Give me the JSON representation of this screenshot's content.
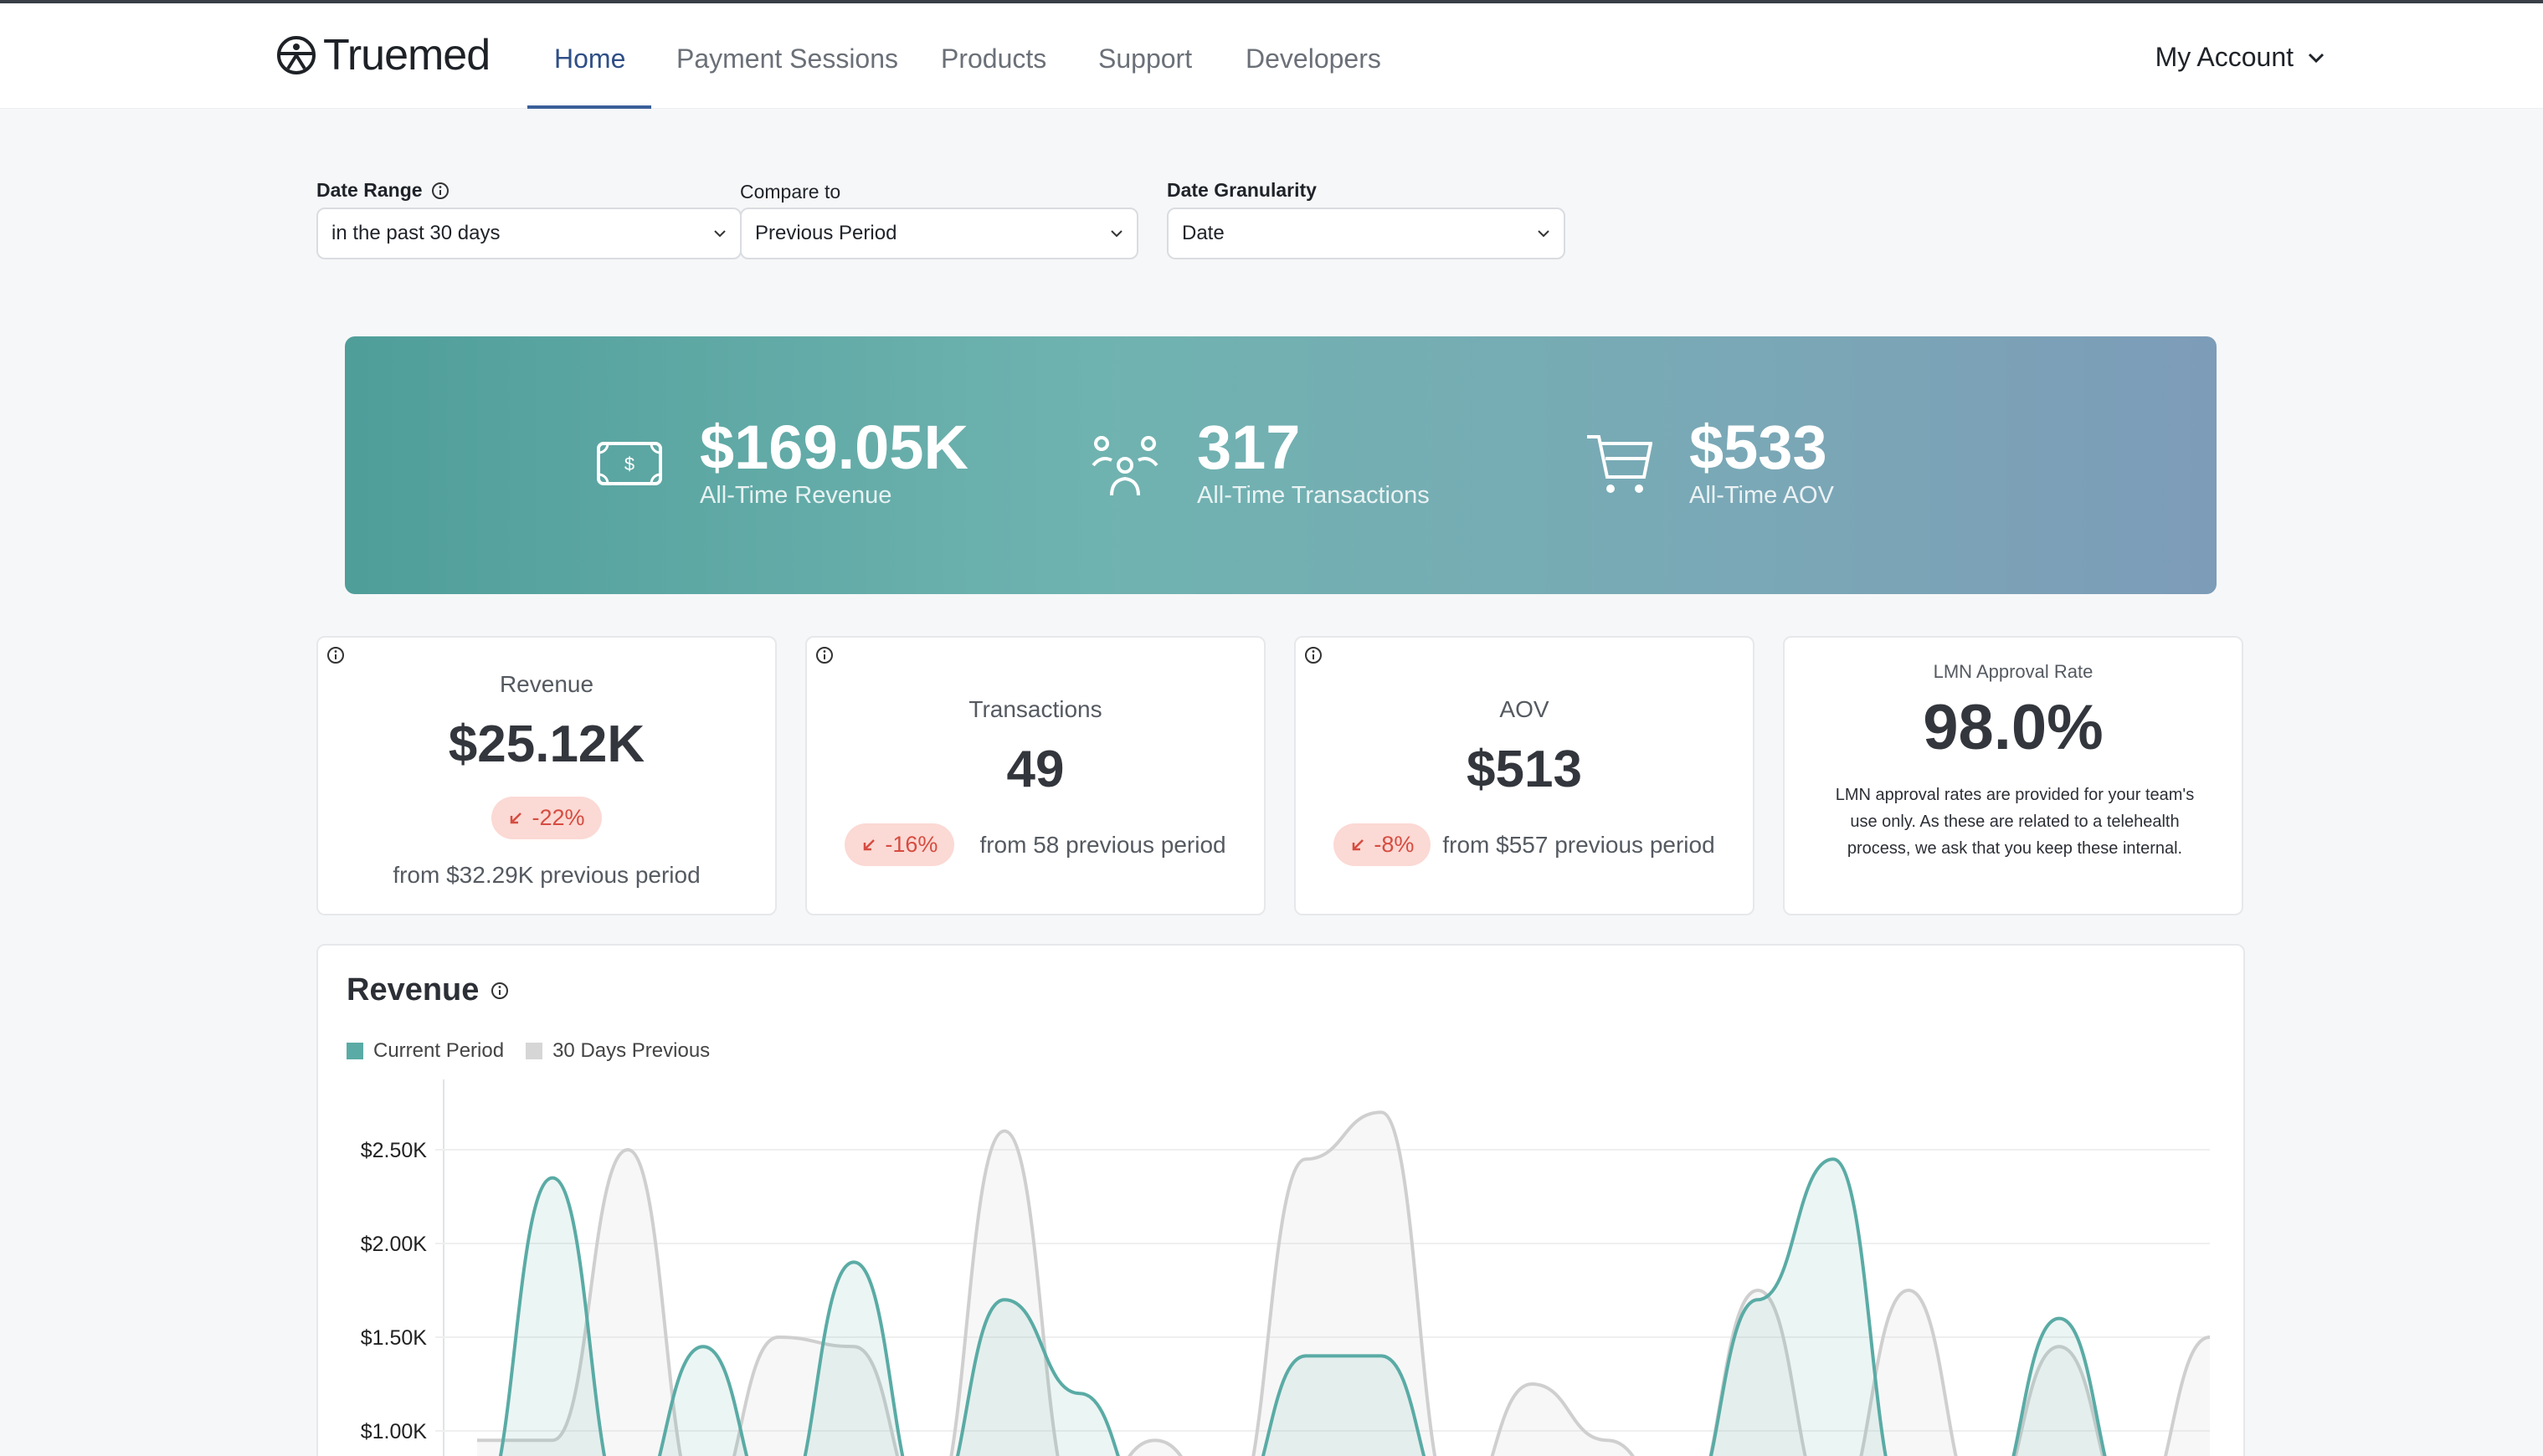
{
  "brand": {
    "name": "Truemed"
  },
  "nav": {
    "items": [
      "Home",
      "Payment Sessions",
      "Products",
      "Support",
      "Developers"
    ],
    "account": "My Account"
  },
  "filters": {
    "date_range": {
      "label": "Date Range",
      "value": "in the past 30 days"
    },
    "compare": {
      "label": "Compare to",
      "value": "Previous Period"
    },
    "granularity": {
      "label": "Date Granularity",
      "value": "Date"
    }
  },
  "banner": {
    "revenue": {
      "value": "$169.05K",
      "caption": "All-Time Revenue"
    },
    "transactions": {
      "value": "317",
      "caption": "All-Time Transactions"
    },
    "aov": {
      "value": "$533",
      "caption": "All-Time AOV"
    }
  },
  "cards": {
    "revenue": {
      "title": "Revenue",
      "value": "$25.12K",
      "change": "-22%",
      "from": "from $32.29K previous period"
    },
    "transactions": {
      "title": "Transactions",
      "value": "49",
      "change": "-16%",
      "from": "from 58 previous period"
    },
    "aov": {
      "title": "AOV",
      "value": "$513",
      "change": "-8%",
      "from": "from $557 previous period"
    },
    "lmn": {
      "title": "LMN Approval Rate",
      "value": "98.0%",
      "note": "LMN approval rates are provided for your team's use only. As these are related to a telehealth process, we ask that you keep these internal."
    }
  },
  "colors": {
    "accent": "#5aaba5",
    "previous": "#cfcfcf",
    "negative": "#d64c41"
  },
  "chart_data": {
    "type": "area",
    "title": "Revenue",
    "yticks": [
      "$2.50K",
      "$2.00K",
      "$1.50K",
      "$1.00K"
    ],
    "series": [
      {
        "name": "Current Period",
        "values": [
          0,
          2350,
          0,
          1450,
          0,
          1900,
          0,
          1700,
          1200,
          0,
          0,
          1400,
          1400,
          0,
          0,
          0,
          0,
          1700,
          2450,
          0,
          0,
          1600,
          0,
          0
        ]
      },
      {
        "name": "30 Days Previous",
        "values": [
          950,
          950,
          2500,
          0,
          1500,
          1450,
          0,
          2600,
          0,
          950,
          0,
          2450,
          2700,
          0,
          1250,
          950,
          0,
          1750,
          0,
          1750,
          0,
          1450,
          0,
          1500
        ]
      }
    ],
    "ylim": [
      0,
      2700
    ]
  }
}
